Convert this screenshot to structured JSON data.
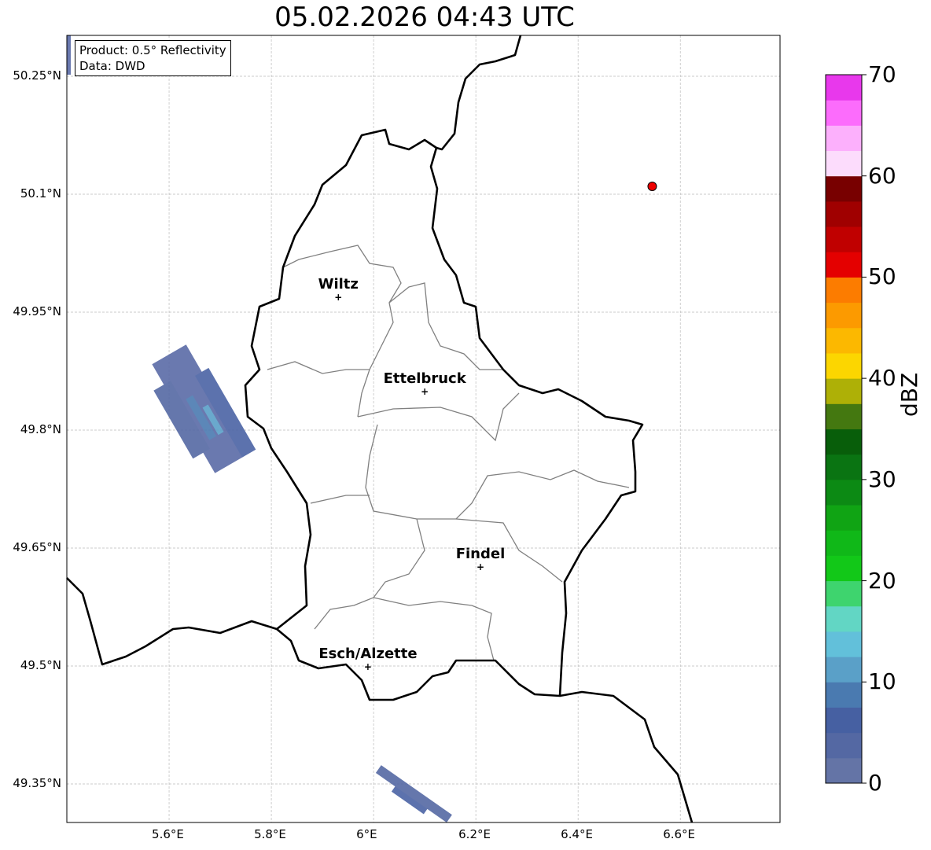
{
  "title": "05.02.2026 04:43 UTC",
  "info": {
    "product": "Product: 0.5° Reflectivity",
    "source": "Data: DWD"
  },
  "map": {
    "lon_range": [
      5.4,
      6.795
    ],
    "lat_range": [
      49.301,
      50.302
    ],
    "lon_ticks": [
      {
        "v": 5.6,
        "label": "5.6°E"
      },
      {
        "v": 5.8,
        "label": "5.8°E"
      },
      {
        "v": 6.0,
        "label": "6°E"
      },
      {
        "v": 6.2,
        "label": "6.2°E"
      },
      {
        "v": 6.4,
        "label": "6.4°E"
      },
      {
        "v": 6.6,
        "label": "6.6°E"
      }
    ],
    "lat_ticks": [
      {
        "v": 50.25,
        "label": "50.25°N"
      },
      {
        "v": 50.1,
        "label": "50.1°N"
      },
      {
        "v": 49.95,
        "label": "49.95°N"
      },
      {
        "v": 49.8,
        "label": "49.8°N"
      },
      {
        "v": 49.65,
        "label": "49.65°N"
      },
      {
        "v": 49.5,
        "label": "49.5°N"
      },
      {
        "v": 49.35,
        "label": "49.35°N"
      }
    ],
    "cities": [
      {
        "name": "Wiltz",
        "lon": 5.931,
        "lat": 49.969
      },
      {
        "name": "Ettelbruck",
        "lon": 6.1,
        "lat": 49.849
      },
      {
        "name": "Findel",
        "lon": 6.209,
        "lat": 49.626
      },
      {
        "name": "Esch/Alzette",
        "lon": 5.989,
        "lat": 49.499
      }
    ],
    "radar_site": {
      "lon": 6.545,
      "lat": 50.11,
      "color": "#ee0000"
    }
  },
  "colorbar": {
    "label": "dBZ",
    "min": 0,
    "max": 70,
    "ticks": [
      "0",
      "10",
      "20",
      "30",
      "40",
      "50",
      "60",
      "70"
    ],
    "colors": [
      "#6474a6",
      "#5468a3",
      "#4660a2",
      "#4a7ab0",
      "#5aa0c8",
      "#62c0da",
      "#62d6c4",
      "#3ed46e",
      "#12c818",
      "#10b818",
      "#10a414",
      "#0c8a14",
      "#0a7412",
      "#085e0a",
      "#447810",
      "#aeb006",
      "#fcd600",
      "#fcb800",
      "#fc9a00",
      "#fc7c00",
      "#e40000",
      "#c00000",
      "#a00000",
      "#780000",
      "#fcdcfc",
      "#fcb0fc",
      "#fc6cfc",
      "#e838ec"
    ]
  }
}
